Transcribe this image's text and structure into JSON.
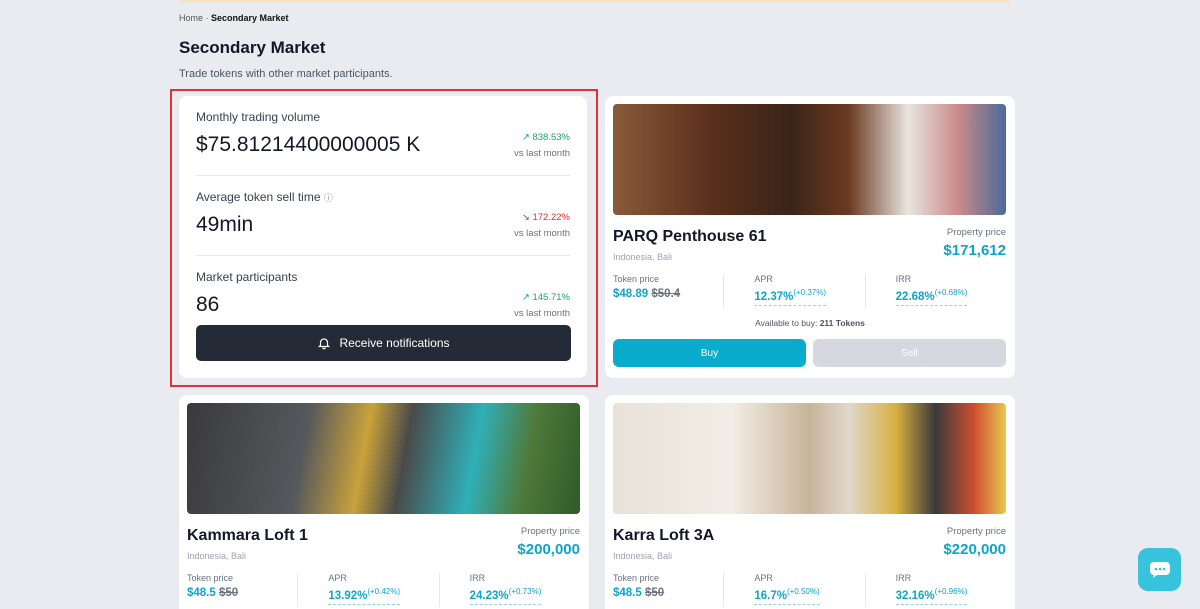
{
  "breadcrumb": {
    "home": "Home",
    "separator": " · ",
    "current": "Secondary Market"
  },
  "header": {
    "title": "Secondary Market",
    "subtitle": "Trade tokens with other market participants."
  },
  "stats": [
    {
      "label": "Monthly trading volume",
      "value": "$75.81214400000005 K",
      "change": "838.53%",
      "direction": "up",
      "vs": "vs last month"
    },
    {
      "label": "Average token sell time",
      "value": "49min",
      "change": "172.22%",
      "direction": "down",
      "vs": "vs last month",
      "info": true
    },
    {
      "label": "Market participants",
      "value": "86",
      "change": "145.71%",
      "direction": "up",
      "vs": "vs last month"
    }
  ],
  "notify_button": "Receive notifications",
  "colors": {
    "accent": "#0aaccd",
    "up": "#22a06b",
    "down": "#d93030",
    "dark": "#242a36"
  },
  "properties": [
    {
      "name": "PARQ Penthouse 61",
      "location": "Indonesia, Bali",
      "price_label": "Property price",
      "price": "$171,612",
      "token_label": "Token price",
      "token_price": "$48.89",
      "token_old": "$50.4",
      "apr_label": "APR",
      "apr": "12.37%",
      "apr_delta": "(+0.37%)",
      "irr_label": "IRR",
      "irr": "22.68%",
      "irr_delta": "(+0.68%)",
      "available_label": "Available to buy:",
      "available": "211 Tokens",
      "buy": "Buy",
      "sell": "Sell"
    },
    {
      "name": "Kammara Loft 1",
      "location": "Indonesia, Bali",
      "price_label": "Property price",
      "price": "$200,000",
      "token_label": "Token price",
      "token_price": "$48.5",
      "token_old": "$50",
      "apr_label": "APR",
      "apr": "13.92%",
      "apr_delta": "(+0.42%)",
      "irr_label": "IRR",
      "irr": "24.23%",
      "irr_delta": "(+0.73%)"
    },
    {
      "name": "Karra Loft 3A",
      "location": "Indonesia, Bali",
      "price_label": "Property price",
      "price": "$220,000",
      "token_label": "Token price",
      "token_price": "$48.5",
      "token_old": "$50",
      "apr_label": "APR",
      "apr": "16.7%",
      "apr_delta": "(+0.50%)",
      "irr_label": "IRR",
      "irr": "32.16%",
      "irr_delta": "(+0.96%)"
    }
  ]
}
